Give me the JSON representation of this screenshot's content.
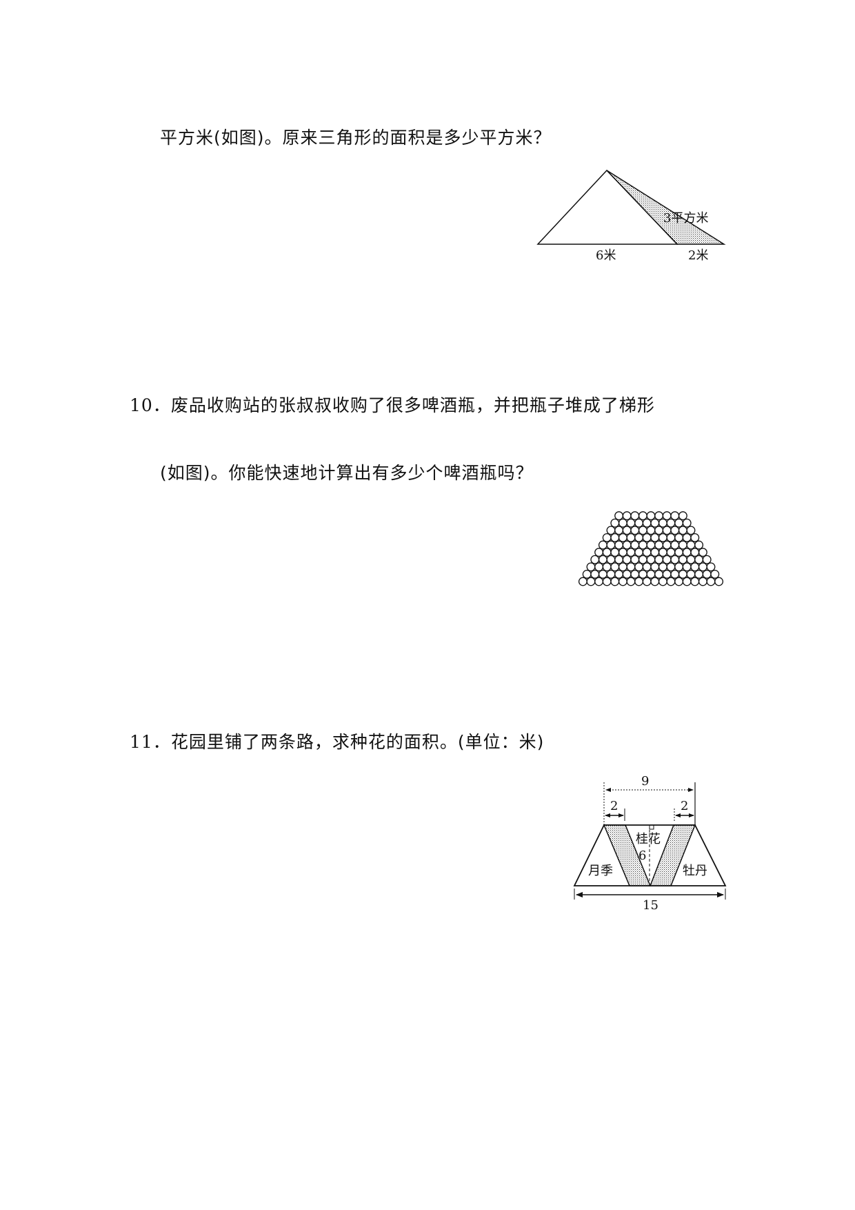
{
  "q9": {
    "text_cont": "平方米(如图)。原来三角形的面积是多少平方米？",
    "figure": {
      "label_area": "3平方米",
      "label_base": "6米",
      "label_ext": "2米"
    }
  },
  "q10": {
    "number": "10．",
    "text_line1": "废品收购站的张叔叔收购了很多啤酒瓶，并把瓶子堆成了梯形",
    "text_line2": "(如图)。你能快速地计算出有多少个啤酒瓶吗？",
    "figure": {
      "top_row_count": 9,
      "bottom_row_count": 18,
      "rows": 10
    }
  },
  "q11": {
    "number": "11．",
    "text": "花园里铺了两条路，求种花的面积。(单位：米)",
    "figure": {
      "top": "9",
      "road_left": "2",
      "road_right": "2",
      "height": "6",
      "bottom": "15",
      "label_middle": "桂花",
      "label_left": "月季",
      "label_right": "牡丹"
    }
  }
}
